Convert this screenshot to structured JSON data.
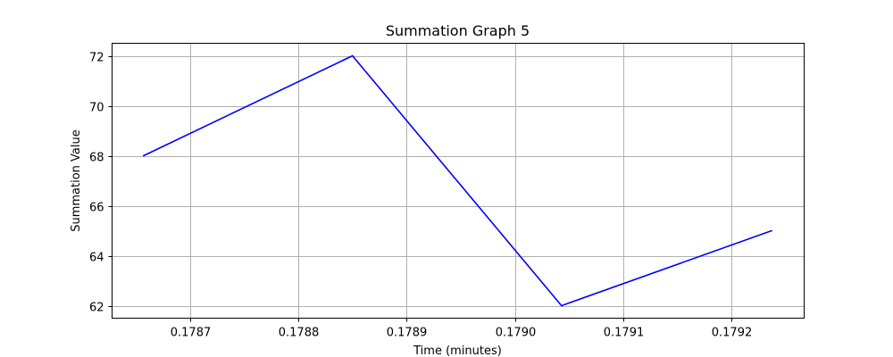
{
  "chart_data": {
    "type": "line",
    "title": "Summation Graph 5",
    "xlabel": "Time (minutes)",
    "ylabel": "Summation Value",
    "grid": true,
    "xlim": [
      0.178628,
      0.179267
    ],
    "ylim": [
      61.5,
      72.5
    ],
    "x_ticks": [
      0.1787,
      0.1788,
      0.1789,
      0.179,
      0.1791,
      0.1792
    ],
    "x_tick_labels": [
      "0.1787",
      "0.1788",
      "0.1789",
      "0.1790",
      "0.1791",
      "0.1792"
    ],
    "y_ticks": [
      62,
      64,
      66,
      68,
      70,
      72
    ],
    "y_tick_labels": [
      "62",
      "64",
      "66",
      "68",
      "70",
      "72"
    ],
    "series": [
      {
        "color": "#0000ff",
        "x": [
          0.178657,
          0.17885,
          0.179043,
          0.179237
        ],
        "y": [
          68,
          72,
          62,
          65
        ]
      }
    ]
  }
}
